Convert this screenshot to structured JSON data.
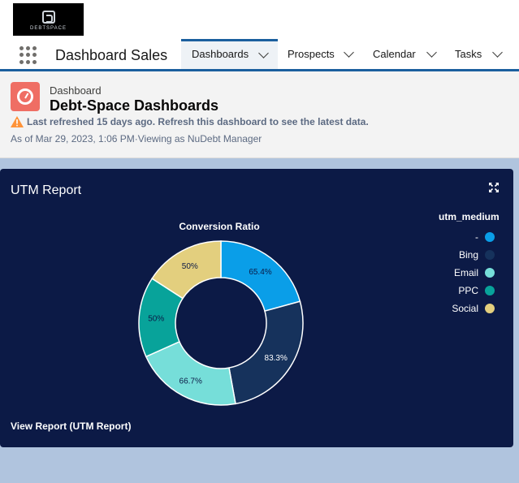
{
  "header": {
    "logo_text": "DEBTSPACE"
  },
  "nav": {
    "app_name": "Dashboard Sales",
    "tabs": [
      {
        "label": "Dashboards",
        "active": true
      },
      {
        "label": "Prospects",
        "active": false
      },
      {
        "label": "Calendar",
        "active": false
      },
      {
        "label": "Tasks",
        "active": false
      }
    ]
  },
  "dashboard": {
    "breadcrumb": "Dashboard",
    "title": "Debt-Space Dashboards",
    "warning": "Last refreshed 15 days ago. Refresh this dashboard to see the latest data.",
    "as_of": "As of Mar 29, 2023, 1:06 PM·Viewing as NuDebt Manager"
  },
  "widget": {
    "title": "UTM Report",
    "view_report": "View Report (UTM Report)",
    "legend_title": "utm_medium"
  },
  "chart_data": {
    "type": "pie",
    "title": "Conversion Ratio",
    "donut": true,
    "legend_title": "utm_medium",
    "legend_position": "top-right",
    "categories": [
      "-",
      "Bing",
      "Email",
      "PPC",
      "Social"
    ],
    "values": [
      65.4,
      83.3,
      66.7,
      50,
      50
    ],
    "labels": [
      "65.4%",
      "83.3%",
      "66.7%",
      "50%",
      "50%"
    ],
    "colors": [
      "#0a9ee8",
      "#16325c",
      "#76ded9",
      "#08a39a",
      "#e3cf7e"
    ],
    "label_colors": [
      "#0c1a46",
      "#ffffff",
      "#0c1a46",
      "#0c1a46",
      "#0c1a46"
    ]
  }
}
